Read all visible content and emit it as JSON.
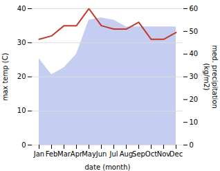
{
  "chart_data": {
    "type": "line",
    "categories": [
      "Jan",
      "Feb",
      "Mar",
      "Apr",
      "May",
      "Jun",
      "Jul",
      "Aug",
      "Sep",
      "Oct",
      "Nov",
      "Dec"
    ],
    "xlabel": "date (month)",
    "ylabel": "max temp (C)",
    "y2label": "med. precipitation\n(kg/m2)",
    "series": [
      {
        "type": "area",
        "color": "#c5cdf0",
        "axis": "y2",
        "values": [
          38,
          31,
          34,
          40,
          55,
          56,
          55,
          52,
          52,
          52,
          52,
          52
        ]
      },
      {
        "type": "line",
        "color": "#c0392b",
        "values": [
          31,
          32,
          35,
          35,
          40,
          35,
          34,
          34,
          36,
          31,
          31,
          33
        ]
      }
    ],
    "ylim": [
      0,
      40
    ],
    "yticks": [
      0,
      10,
      20,
      30,
      40
    ],
    "y2lim": [
      0,
      60
    ],
    "y2ticks": [
      0,
      10,
      20,
      30,
      40,
      50,
      60
    ],
    "grid": true
  }
}
